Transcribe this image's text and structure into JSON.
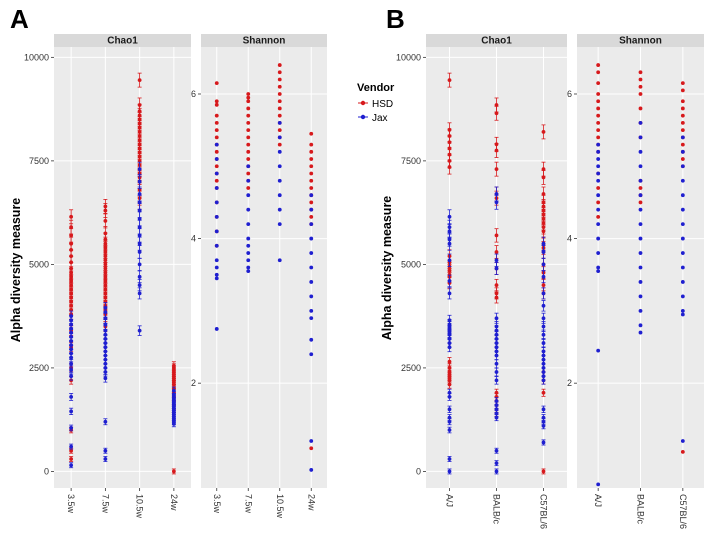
{
  "figure": {
    "panel_labels": [
      "A",
      "B"
    ],
    "ylabel": "Alpha diversity measure",
    "legend": {
      "title": "Vendor",
      "entries": [
        {
          "name": "HSD",
          "color": "#d7191c"
        },
        {
          "name": "Jax",
          "color": "#1f1fd0"
        }
      ]
    }
  },
  "chart_data": [
    {
      "type": "scatter",
      "panel": "A",
      "facet": "Chao1",
      "categories": [
        "3.5w",
        "7.5w",
        "10.5w",
        "24w"
      ],
      "ylim": [
        -400,
        10250
      ],
      "yticks": [
        0,
        2500,
        5000,
        7500,
        10000
      ],
      "series": [
        {
          "name": "HSD",
          "values": [
            [
              6150,
              5900,
              5700,
              5500,
              5350,
              5200,
              5050,
              4900,
              4800,
              4700,
              4600,
              4500,
              4400,
              4300,
              4200,
              4100,
              4000,
              3900,
              3800,
              3400,
              3000,
              2500,
              2200,
              1000,
              500,
              300
            ],
            [
              6400,
              6300,
              6050,
              5750,
              5600,
              5500,
              5400,
              5300,
              5200,
              5100,
              5000,
              4900,
              4800,
              4700,
              4600,
              4500,
              4400,
              4300,
              4200,
              4100,
              4000,
              3900,
              3800,
              3700,
              3500
            ],
            [
              9450,
              8850,
              8700,
              8600,
              8500,
              8400,
              8300,
              8200,
              8100,
              8000,
              7900,
              7800,
              7700,
              7600,
              7500,
              7400,
              7300,
              7200,
              7100,
              7000,
              6800,
              6600,
              6500
            ],
            [
              2550,
              2500,
              2450,
              2400,
              2350,
              2300,
              2250,
              2200,
              2150,
              2100,
              2000,
              1900,
              1800,
              1700,
              1600,
              1500,
              0
            ]
          ]
        },
        {
          "name": "Jax",
          "values": [
            [
              3750,
              3650,
              3550,
              3450,
              3350,
              3250,
              3150,
              3050,
              2950,
              2850,
              2750,
              2600,
              2450,
              2300,
              1800,
              1450,
              1050,
              600,
              150
            ],
            [
              3950,
              3850,
              3700,
              3550,
              3400,
              3300,
              3200,
              3100,
              3000,
              2900,
              2800,
              2700,
              2600,
              2500,
              2400,
              2250,
              1200,
              500,
              300
            ],
            [
              7300,
              7000,
              6700,
              6500,
              6300,
              6100,
              5900,
              5700,
              5500,
              5300,
              5000,
              4700,
              4500,
              4300,
              3400
            ],
            [
              1950,
              1850,
              1800,
              1750,
              1700,
              1650,
              1600,
              1550,
              1500,
              1450,
              1400,
              1350,
              1300,
              1250,
              1200,
              1150
            ]
          ]
        }
      ]
    },
    {
      "type": "scatter",
      "panel": "A",
      "facet": "Shannon",
      "categories": [
        "3.5w",
        "7.5w",
        "10.5w",
        "24w"
      ],
      "ylim": [
        0.55,
        6.65
      ],
      "yticks": [
        2,
        4,
        6
      ],
      "series": [
        {
          "name": "HSD",
          "values": [
            [
              6.15,
              5.9,
              5.85,
              5.7,
              5.6,
              5.5,
              5.4,
              5.3,
              5.2,
              5.1,
              5.0,
              4.9,
              4.8,
              4.7,
              4.5,
              4.3,
              4.1,
              3.9
            ],
            [
              6.0,
              5.95,
              5.9,
              5.8,
              5.7,
              5.6,
              5.5,
              5.4,
              5.3,
              5.2,
              5.1,
              5.0,
              4.9,
              4.8,
              4.7
            ],
            [
              6.4,
              6.3,
              6.2,
              6.1,
              6.0,
              5.9,
              5.8,
              5.7,
              5.6,
              5.5,
              5.4,
              5.3
            ],
            [
              5.45,
              5.3,
              5.2,
              5.1,
              5.0,
              4.9,
              4.8,
              4.7,
              4.6,
              4.5,
              4.4,
              4.3,
              4.2,
              1.1
            ]
          ]
        },
        {
          "name": "Jax",
          "values": [
            [
              5.3,
              5.1,
              4.9,
              4.7,
              4.5,
              4.3,
              4.1,
              3.9,
              3.7,
              3.6,
              3.5,
              3.45,
              2.75
            ],
            [
              5.0,
              4.8,
              4.6,
              4.4,
              4.2,
              4.0,
              3.9,
              3.8,
              3.7,
              3.6,
              3.55
            ],
            [
              5.6,
              5.4,
              5.2,
              5.0,
              4.8,
              4.6,
              4.4,
              4.2,
              3.7
            ],
            [
              4.6,
              4.4,
              4.2,
              4.0,
              3.8,
              3.6,
              3.4,
              3.2,
              3.0,
              2.9,
              2.6,
              2.4,
              1.2,
              0.8
            ]
          ]
        }
      ]
    },
    {
      "type": "scatter",
      "panel": "B",
      "facet": "Chao1",
      "categories": [
        "A/J",
        "BALB/c",
        "C57BL/6"
      ],
      "ylim": [
        -400,
        10250
      ],
      "yticks": [
        0,
        2500,
        5000,
        7500,
        10000
      ],
      "series": [
        {
          "name": "HSD",
          "values": [
            [
              9450,
              8250,
              8100,
              7950,
              7800,
              7650,
              7500,
              7350,
              5200,
              5050,
              4950,
              4850,
              4750,
              4700,
              4550,
              2650,
              2500,
              2400,
              2350,
              2300,
              2250,
              2200,
              2100
            ],
            [
              8850,
              8650,
              7900,
              7750,
              7300,
              6700,
              6600,
              5700,
              5300,
              4900,
              4500,
              4300,
              4200,
              1900,
              1800,
              1700,
              1600,
              1500,
              1400
            ],
            [
              8200,
              7300,
              7100,
              6700,
              6500,
              6400,
              6300,
              6200,
              6100,
              6000,
              5900,
              5800,
              5500,
              5400,
              5300,
              5000,
              4800,
              4500,
              4300,
              2400,
              2200,
              1900,
              0
            ]
          ]
        },
        {
          "name": "Jax",
          "values": [
            [
              6150,
              5900,
              5800,
              5600,
              5500,
              5100,
              4600,
              4300,
              3650,
              3550,
              3500,
              3450,
              3400,
              3350,
              3300,
              3200,
              3100,
              3000,
              1900,
              1800,
              1500,
              1300,
              1200,
              1000,
              300,
              0
            ],
            [
              6700,
              6500,
              5100,
              4900,
              3700,
              3500,
              3400,
              3300,
              3200,
              3100,
              3000,
              2900,
              2800,
              2600,
              2400,
              2200,
              1700,
              1600,
              1500,
              1400,
              1300,
              500,
              200,
              0
            ],
            [
              5500,
              5300,
              5000,
              4700,
              4300,
              4000,
              3700,
              3500,
              3300,
              3100,
              2900,
              2800,
              2700,
              2600,
              2500,
              2400,
              2300,
              2200,
              1500,
              1300,
              1200,
              1100,
              700
            ]
          ]
        }
      ]
    },
    {
      "type": "scatter",
      "panel": "B",
      "facet": "Shannon",
      "categories": [
        "A/J",
        "BALB/c",
        "C57BL/6"
      ],
      "ylim": [
        0.55,
        6.65
      ],
      "yticks": [
        2,
        4,
        6
      ],
      "series": [
        {
          "name": "HSD",
          "values": [
            [
              6.4,
              6.3,
              6.15,
              6.0,
              5.9,
              5.8,
              5.7,
              5.6,
              5.5,
              5.4,
              5.3,
              5.2,
              4.9,
              4.7,
              4.5,
              4.3
            ],
            [
              6.3,
              6.2,
              6.1,
              6.0,
              5.8,
              5.6,
              5.4,
              4.8,
              4.7,
              4.6,
              4.5
            ],
            [
              6.15,
              6.05,
              5.9,
              5.8,
              5.7,
              5.6,
              5.5,
              5.4,
              5.3,
              5.2,
              5.1,
              5.0,
              1.05
            ]
          ]
        },
        {
          "name": "Jax",
          "values": [
            [
              5.3,
              5.2,
              5.1,
              5.0,
              4.9,
              4.8,
              4.6,
              4.4,
              4.2,
              4.0,
              3.8,
              3.6,
              3.55,
              2.45,
              0.6
            ],
            [
              5.6,
              5.4,
              5.2,
              5.0,
              4.8,
              4.6,
              4.4,
              4.2,
              4.0,
              3.8,
              3.6,
              3.4,
              3.2,
              3.0,
              2.8,
              2.7
            ],
            [
              5.4,
              5.2,
              5.0,
              4.8,
              4.6,
              4.4,
              4.2,
              4.0,
              3.8,
              3.6,
              3.4,
              3.2,
              3.0,
              2.95,
              1.2
            ]
          ]
        }
      ]
    }
  ]
}
